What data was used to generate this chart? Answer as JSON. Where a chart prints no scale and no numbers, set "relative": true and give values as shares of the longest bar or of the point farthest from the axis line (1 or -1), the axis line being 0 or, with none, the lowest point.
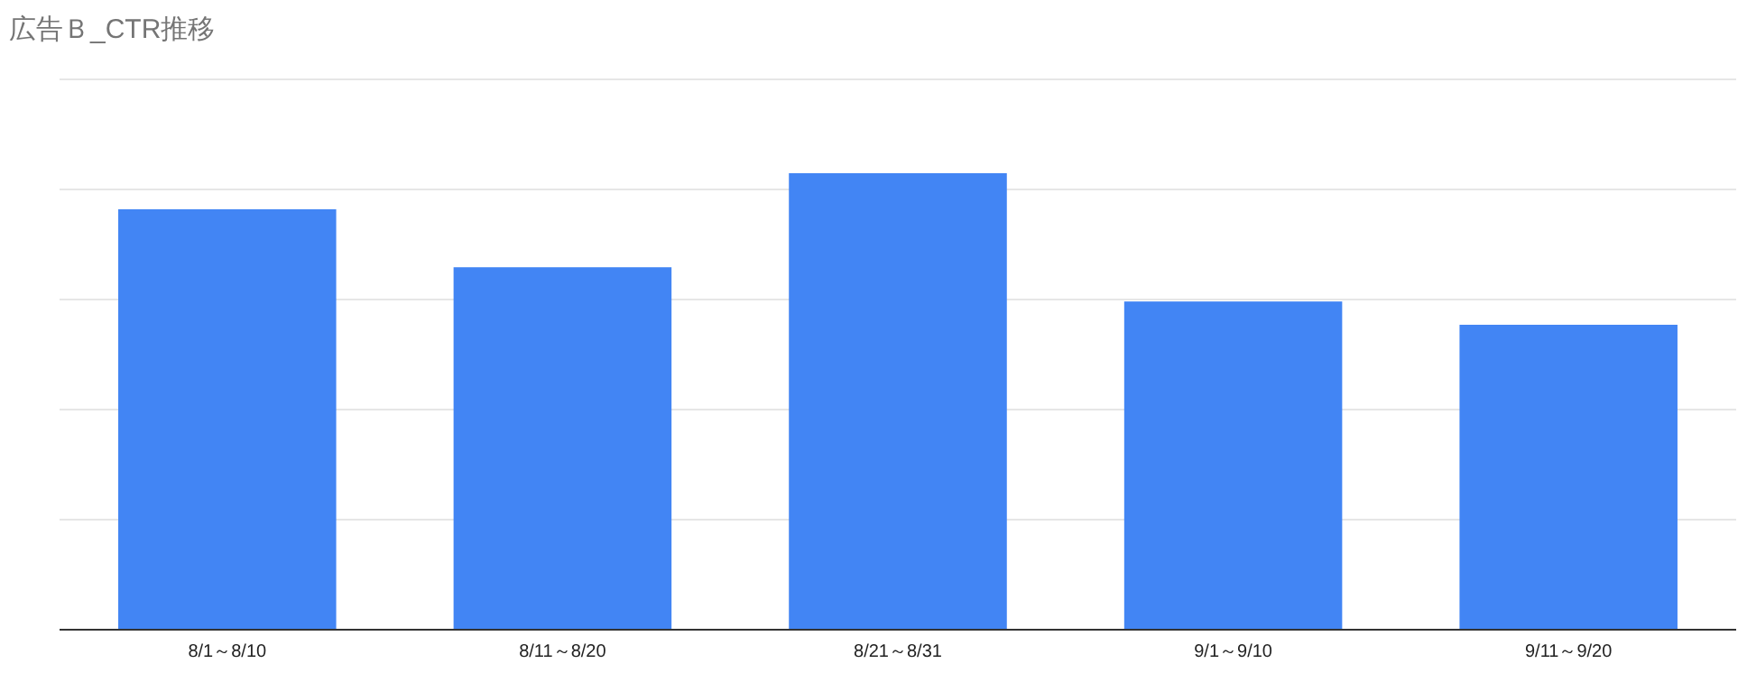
{
  "chart_data": {
    "type": "bar",
    "title": "広告Ｂ_CTR推移",
    "categories": [
      "8/1～8/10",
      "8/11～8/20",
      "8/21～8/31",
      "9/1～9/10",
      "9/11～9/20"
    ],
    "values": [
      0.921,
      0.794,
      1,
      0.719,
      0.668
    ],
    "color": "#4285f4",
    "relative": true,
    "grid": "y"
  }
}
